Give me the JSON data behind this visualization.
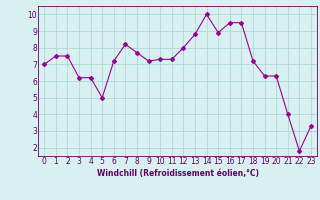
{
  "x": [
    0,
    1,
    2,
    3,
    4,
    5,
    6,
    7,
    8,
    9,
    10,
    11,
    12,
    13,
    14,
    15,
    16,
    17,
    18,
    19,
    20,
    21,
    22,
    23
  ],
  "y": [
    7.0,
    7.5,
    7.5,
    6.2,
    6.2,
    5.0,
    7.2,
    8.2,
    7.7,
    7.2,
    7.3,
    7.3,
    8.0,
    8.8,
    10.0,
    8.9,
    9.5,
    9.5,
    7.2,
    6.3,
    6.3,
    4.0,
    1.8,
    3.3
  ],
  "line_color": "#990099",
  "marker": "D",
  "marker_size": 2,
  "bg_color": "#d8f0f0",
  "grid_color": "#b0d8d8",
  "xlabel": "Windchill (Refroidissement éolien,°C)",
  "xlabel_color": "#660066",
  "tick_color": "#660066",
  "spine_color": "#660066",
  "ylim": [
    1.5,
    10.5
  ],
  "xlim": [
    -0.5,
    23.5
  ],
  "yticks": [
    2,
    3,
    4,
    5,
    6,
    7,
    8,
    9,
    10
  ],
  "xticks": [
    0,
    1,
    2,
    3,
    4,
    5,
    6,
    7,
    8,
    9,
    10,
    11,
    12,
    13,
    14,
    15,
    16,
    17,
    18,
    19,
    20,
    21,
    22,
    23
  ],
  "tick_fontsize": 5.5,
  "xlabel_fontsize": 5.5
}
